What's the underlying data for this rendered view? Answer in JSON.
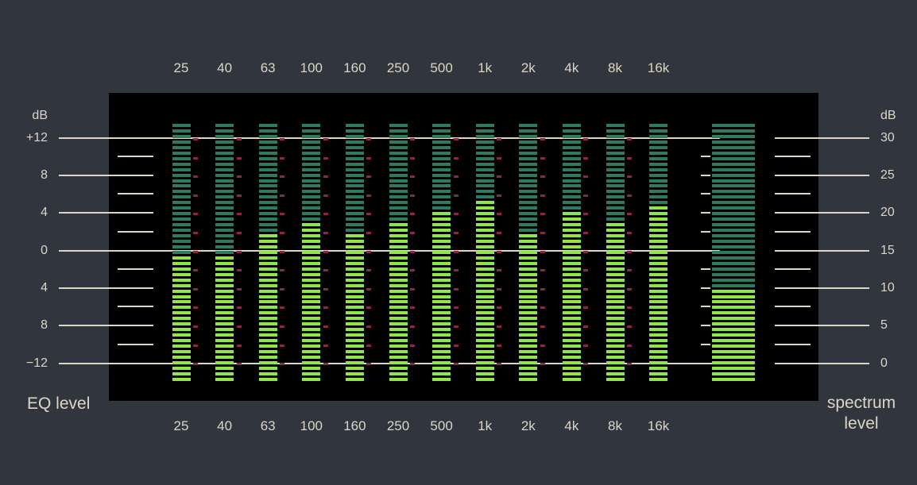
{
  "frequencies": [
    "25",
    "40",
    "63",
    "100",
    "160",
    "250",
    "500",
    "1k",
    "2k",
    "4k",
    "8k",
    "16k"
  ],
  "eq_scale": {
    "unit": "dB",
    "labels": [
      "+12",
      "8",
      "4",
      "0",
      "4",
      "8",
      "−12"
    ]
  },
  "spectrum_scale": {
    "unit": "dB",
    "labels": [
      "30",
      "25",
      "20",
      "15",
      "10",
      "5",
      "0"
    ]
  },
  "eq_caption": "EQ level",
  "spectrum_caption": "spectrum level",
  "eq_levels_db": [
    -0.5,
    -0.5,
    2,
    3,
    2,
    3,
    4,
    5.5,
    2,
    4,
    3,
    5
  ],
  "spectrum_level_db": 10,
  "colors": {
    "background": "#31353e",
    "panel": "#000000",
    "text": "#ddd6c4",
    "lit": "#8fe64a",
    "unlit": "#2e7a5e",
    "marker": "#8b2848"
  }
}
